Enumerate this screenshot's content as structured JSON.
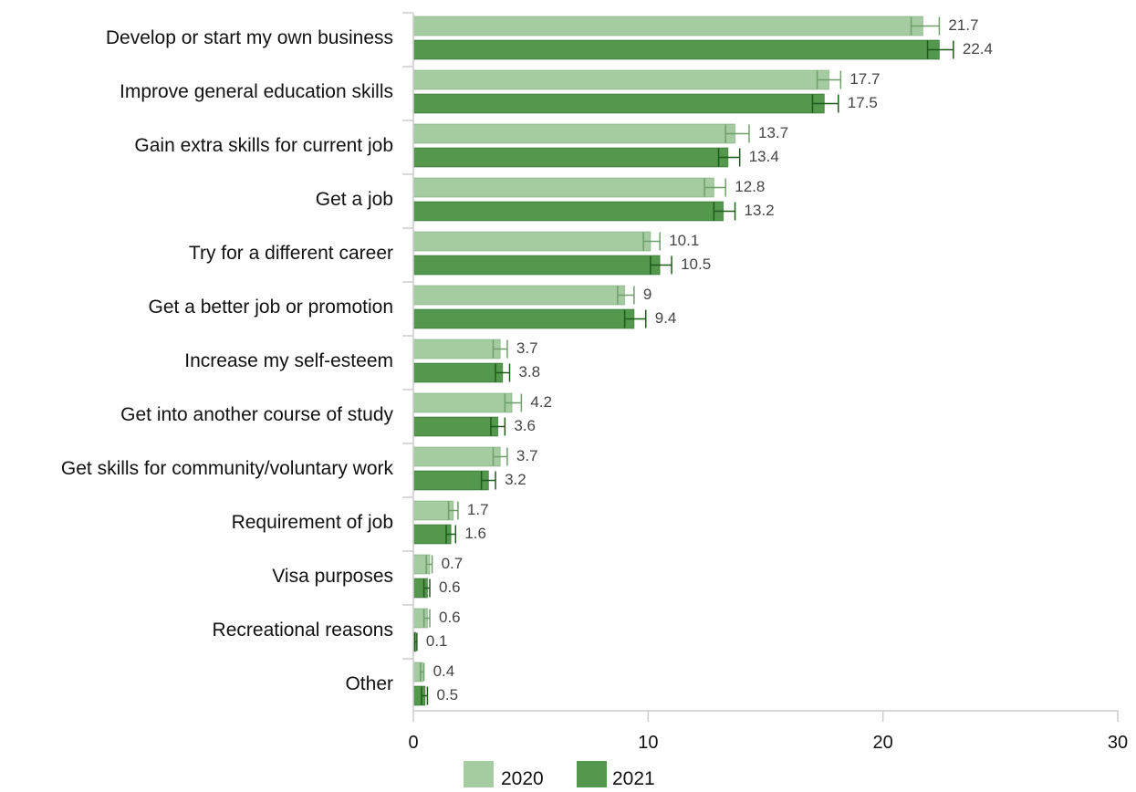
{
  "chart_data": {
    "type": "bar",
    "orientation": "horizontal",
    "categories": [
      "Develop or start my own business",
      "Improve general education skills",
      "Gain extra skills for current job",
      "Get a job",
      "Try for a different career",
      "Get a better job or promotion",
      "Increase my self-esteem",
      "Get into another course of study",
      "Get skills for community/voluntary work",
      "Requirement of job",
      "Visa purposes",
      "Recreational reasons",
      "Other"
    ],
    "series": [
      {
        "name": "2020",
        "color": "#a5cca1",
        "error_color": "#6f9e6b",
        "values": [
          21.7,
          17.7,
          13.7,
          12.8,
          10.1,
          9,
          3.7,
          4.2,
          3.7,
          1.7,
          0.7,
          0.6,
          0.4
        ],
        "error_low": [
          21.2,
          17.2,
          13.3,
          12.4,
          9.8,
          8.7,
          3.4,
          3.9,
          3.4,
          1.5,
          0.55,
          0.45,
          0.3
        ],
        "error_high": [
          22.4,
          18.2,
          14.3,
          13.3,
          10.5,
          9.4,
          4.0,
          4.6,
          4.0,
          1.9,
          0.8,
          0.7,
          0.45
        ]
      },
      {
        "name": "2021",
        "color": "#54984e",
        "error_color": "#1e5b1a",
        "values": [
          22.4,
          17.5,
          13.4,
          13.2,
          10.5,
          9.4,
          3.8,
          3.6,
          3.2,
          1.6,
          0.6,
          0.1,
          0.5
        ],
        "error_low": [
          21.9,
          17.0,
          13.0,
          12.8,
          10.1,
          9.0,
          3.5,
          3.3,
          2.9,
          1.4,
          0.45,
          0.05,
          0.35
        ],
        "error_high": [
          23.0,
          18.1,
          13.9,
          13.7,
          11.0,
          9.9,
          4.1,
          3.9,
          3.5,
          1.8,
          0.7,
          0.15,
          0.6
        ]
      }
    ],
    "data_labels": [
      [
        "21.7",
        "17.7",
        "13.7",
        "12.8",
        "10.1",
        "9",
        "3.7",
        "4.2",
        "3.7",
        "1.7",
        "0.7",
        "0.6",
        "0.4"
      ],
      [
        "22.4",
        "17.5",
        "13.4",
        "13.2",
        "10.5",
        "9.4",
        "3.8",
        "3.6",
        "3.2",
        "1.6",
        "0.6",
        "0.1",
        "0.5"
      ]
    ],
    "xlim": [
      0,
      30
    ],
    "xticks": [
      0,
      10,
      20,
      30
    ],
    "xtick_labels": [
      "0",
      "10",
      "20",
      "30"
    ],
    "grid": false,
    "legend_position": "bottom-center",
    "title": "",
    "xlabel": "",
    "ylabel": ""
  }
}
